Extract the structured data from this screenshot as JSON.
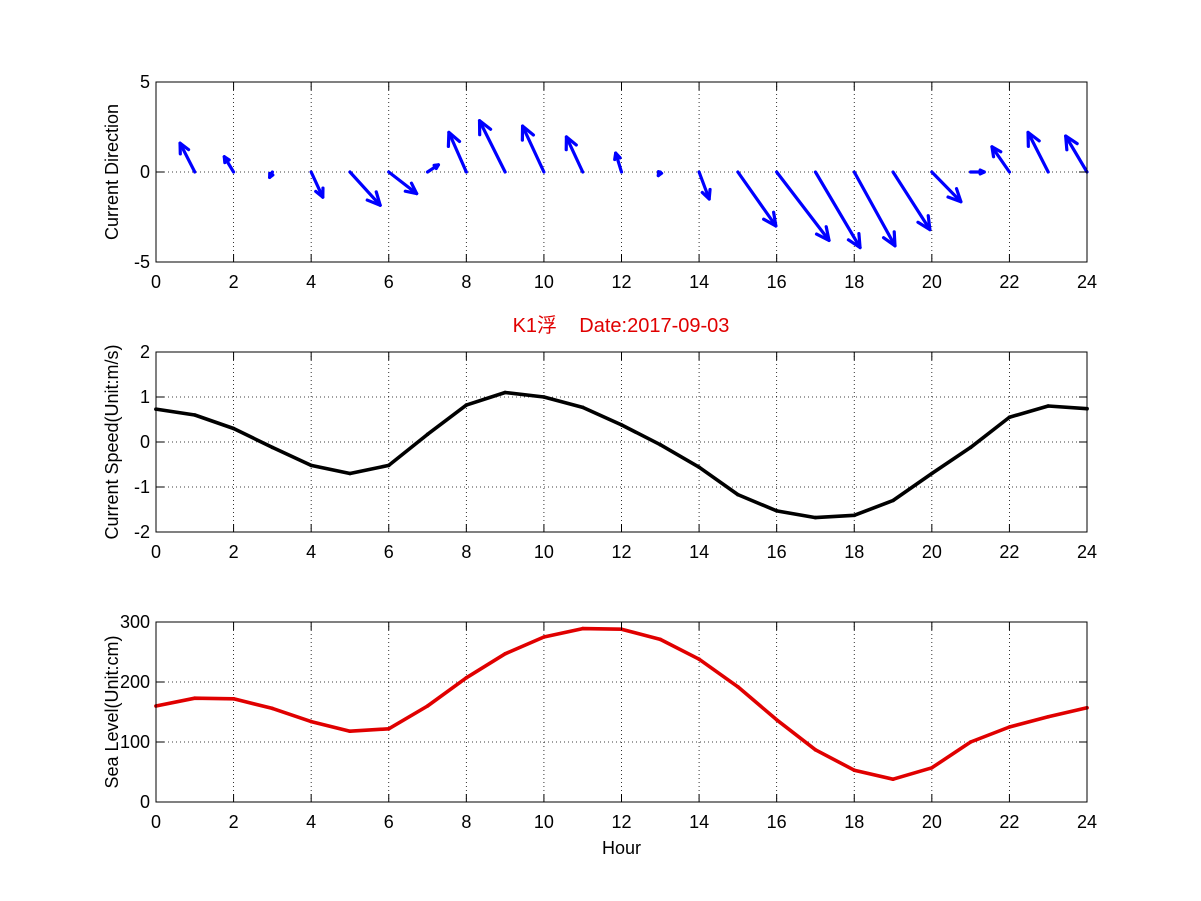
{
  "figure_title": "K1浮    Date:2017-09-03",
  "colors": {
    "title": "#e00000",
    "arrows": "#0000ff",
    "speed_line": "#000000",
    "level_line": "#e00000",
    "grid": "#000000",
    "axes": "#000000"
  },
  "chart_data": [
    {
      "type": "quiver",
      "ylabel": "Current Direction",
      "xlabel": "",
      "xlim": [
        0,
        24
      ],
      "ylim": [
        -5,
        5
      ],
      "xticks": [
        0,
        2,
        4,
        6,
        8,
        10,
        12,
        14,
        16,
        18,
        20,
        22,
        24
      ],
      "yticks": [
        -5,
        0,
        5
      ],
      "grid": true,
      "x": [
        1,
        2,
        3,
        4,
        5,
        6,
        7,
        8,
        9,
        10,
        11,
        12,
        13,
        14,
        15,
        16,
        17,
        18,
        19,
        20,
        21,
        22,
        23,
        24
      ],
      "u": [
        -0.38,
        -0.24,
        -0.07,
        0.3,
        0.78,
        0.72,
        0.28,
        -0.45,
        -0.66,
        -0.55,
        -0.42,
        -0.15,
        -0.05,
        0.26,
        0.98,
        1.35,
        1.15,
        1.05,
        0.95,
        0.75,
        0.35,
        -0.45,
        -0.52,
        -0.55
      ],
      "v": [
        1.6,
        0.85,
        -0.3,
        -1.4,
        -1.85,
        -1.2,
        0.4,
        2.2,
        2.85,
        2.55,
        1.95,
        1.05,
        -0.2,
        -1.5,
        -3.0,
        -3.8,
        -4.2,
        -4.1,
        -3.2,
        -1.65,
        0.0,
        1.4,
        2.2,
        2.0
      ]
    },
    {
      "type": "line",
      "ylabel": "Current Speed(Unit:m/s)",
      "xlabel": "",
      "xlim": [
        0,
        24
      ],
      "ylim": [
        -2,
        2
      ],
      "xticks": [
        0,
        2,
        4,
        6,
        8,
        10,
        12,
        14,
        16,
        18,
        20,
        22,
        24
      ],
      "yticks": [
        -2,
        -1,
        0,
        1,
        2
      ],
      "grid": true,
      "x": [
        0,
        1,
        2,
        3,
        4,
        5,
        6,
        7,
        8,
        9,
        10,
        11,
        12,
        13,
        14,
        15,
        16,
        17,
        18,
        19,
        20,
        21,
        22,
        23,
        24
      ],
      "y": [
        0.73,
        0.6,
        0.3,
        -0.12,
        -0.52,
        -0.7,
        -0.52,
        0.17,
        0.82,
        1.1,
        1.0,
        0.77,
        0.38,
        -0.06,
        -0.56,
        -1.17,
        -1.53,
        -1.68,
        -1.63,
        -1.3,
        -0.7,
        -0.12,
        0.55,
        0.8,
        0.74
      ]
    },
    {
      "type": "line",
      "ylabel": "Sea Level(Unit:cm)",
      "xlabel": "Hour",
      "xlim": [
        0,
        24
      ],
      "ylim": [
        0,
        300
      ],
      "xticks": [
        0,
        2,
        4,
        6,
        8,
        10,
        12,
        14,
        16,
        18,
        20,
        22,
        24
      ],
      "yticks": [
        0,
        100,
        200,
        300
      ],
      "grid": true,
      "x": [
        0,
        1,
        2,
        3,
        4,
        5,
        6,
        7,
        8,
        9,
        10,
        11,
        12,
        13,
        14,
        15,
        16,
        17,
        18,
        19,
        20,
        21,
        22,
        23,
        24
      ],
      "y": [
        160,
        173,
        172,
        156,
        134,
        118,
        122,
        160,
        207,
        247,
        275,
        289,
        288,
        271,
        238,
        192,
        137,
        87,
        53,
        38,
        57,
        100,
        125,
        142,
        157
      ]
    }
  ]
}
